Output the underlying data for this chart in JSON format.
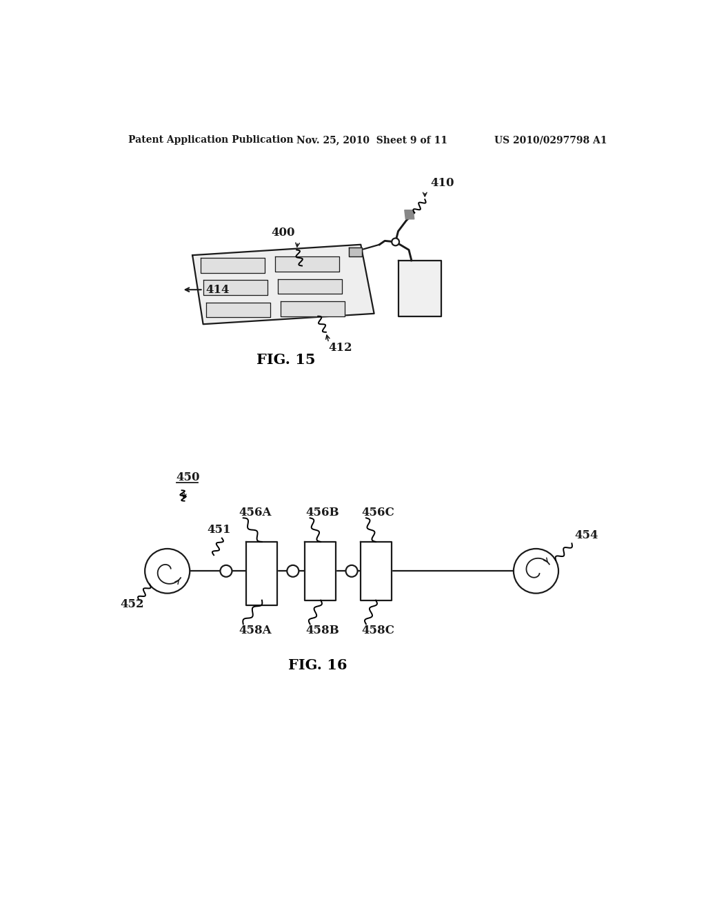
{
  "bg_color": "#ffffff",
  "text_color": "#1a1a1a",
  "header_left": "Patent Application Publication",
  "header_center": "Nov. 25, 2010  Sheet 9 of 11",
  "header_right": "US 2010/0297798 A1",
  "fig15_label": "FIG. 15",
  "fig16_label": "FIG. 16",
  "line_color": "#1a1a1a"
}
